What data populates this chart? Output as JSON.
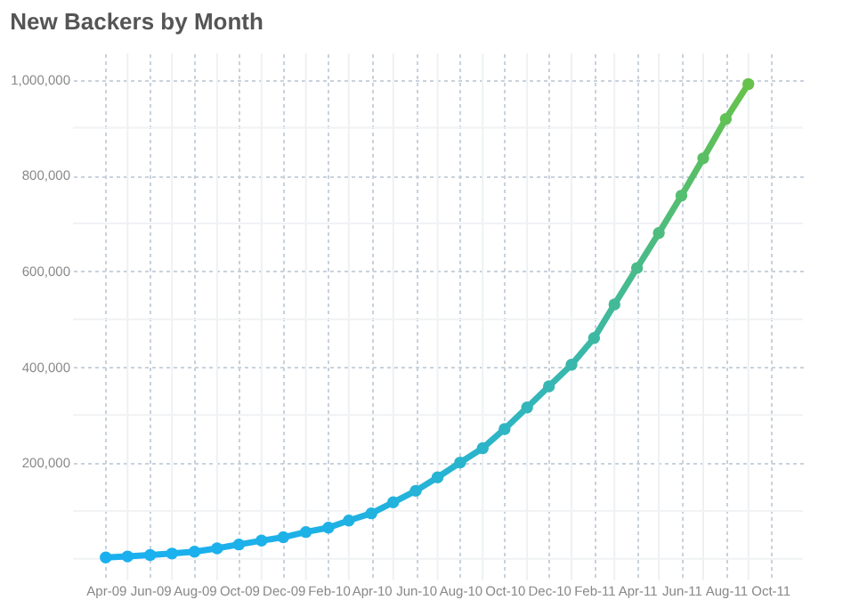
{
  "chart_data": {
    "type": "line",
    "title": "New Backers by Month",
    "x": [
      "2009-04",
      "2009-05",
      "2009-06",
      "2009-07",
      "2009-08",
      "2009-09",
      "2009-10",
      "2009-11",
      "2009-12",
      "2010-01",
      "2010-02",
      "2010-03",
      "2010-04",
      "2010-05",
      "2010-06",
      "2010-07",
      "2010-08",
      "2010-09",
      "2010-10",
      "2010-11",
      "2010-12",
      "2011-01",
      "2011-02",
      "2011-03",
      "2011-04",
      "2011-05",
      "2011-06",
      "2011-07",
      "2011-08",
      "2011-09"
    ],
    "series": [
      {
        "values": [
          3000,
          5000,
          8000,
          11000,
          15000,
          22000,
          30000,
          38000,
          45000,
          56000,
          65000,
          80000,
          95000,
          118000,
          142000,
          170000,
          201000,
          231000,
          271000,
          316000,
          360000,
          405000,
          461000,
          531000,
          607000,
          680000,
          758000,
          836000,
          918000,
          991000
        ],
        "colors": [
          "#1ab0f0",
          "#1ab0ef",
          "#1bb0ee",
          "#1bb0ee",
          "#1bb0ed",
          "#1cb0ec",
          "#1cb1eb",
          "#1db1e9",
          "#1eb1e8",
          "#1eb1e6",
          "#1fb1e5",
          "#20b1e3",
          "#21b2e0",
          "#23b2dc",
          "#25b3d8",
          "#27b3d3",
          "#29b4ce",
          "#2cb4c9",
          "#2fb5c3",
          "#32b6bb",
          "#36b7b4",
          "#39b7ac",
          "#3db8a3",
          "#43ba97",
          "#49bb8a",
          "#4ebc7e",
          "#54be71",
          "#5abf64",
          "#60c156",
          "#66c24a"
        ]
      }
    ],
    "marker": "circle",
    "line_style": "solid",
    "grid": true,
    "xlim": [
      "2009-02-15",
      "2011-11-15"
    ],
    "xticks": [
      {
        "value": "2009-04",
        "label": "Apr-09"
      },
      {
        "value": "2009-05",
        "label": null
      },
      {
        "value": "2009-06",
        "label": "Jun-09"
      },
      {
        "value": "2009-07",
        "label": null
      },
      {
        "value": "2009-08",
        "label": "Aug-09"
      },
      {
        "value": "2009-09",
        "label": null
      },
      {
        "value": "2009-10",
        "label": "Oct-09"
      },
      {
        "value": "2009-11",
        "label": null
      },
      {
        "value": "2009-12",
        "label": "Dec-09"
      },
      {
        "value": "2010-01",
        "label": null
      },
      {
        "value": "2010-02",
        "label": "Feb-10"
      },
      {
        "value": "2010-03",
        "label": null
      },
      {
        "value": "2010-04",
        "label": "Apr-10"
      },
      {
        "value": "2010-05",
        "label": null
      },
      {
        "value": "2010-06",
        "label": "Jun-10"
      },
      {
        "value": "2010-07",
        "label": null
      },
      {
        "value": "2010-08",
        "label": "Aug-10"
      },
      {
        "value": "2010-09",
        "label": null
      },
      {
        "value": "2010-10",
        "label": "Oct-10"
      },
      {
        "value": "2010-11",
        "label": null
      },
      {
        "value": "2010-12",
        "label": "Dec-10"
      },
      {
        "value": "2011-01",
        "label": null
      },
      {
        "value": "2011-02",
        "label": "Feb-11"
      },
      {
        "value": "2011-03",
        "label": null
      },
      {
        "value": "2011-04",
        "label": "Apr-11"
      },
      {
        "value": "2011-05",
        "label": null
      },
      {
        "value": "2011-06",
        "label": "Jun-11"
      },
      {
        "value": "2011-07",
        "label": null
      },
      {
        "value": "2011-08",
        "label": "Aug-11"
      },
      {
        "value": "2011-09",
        "label": null
      },
      {
        "value": "2011-10",
        "label": "Oct-11"
      }
    ],
    "ylim": [
      -45000,
      1055000
    ],
    "yticks": [
      {
        "value": 0,
        "label": null
      },
      {
        "value": 100000,
        "label": null
      },
      {
        "value": 200000,
        "label": "200,000"
      },
      {
        "value": 300000,
        "label": null
      },
      {
        "value": 400000,
        "label": "400,000"
      },
      {
        "value": 500000,
        "label": null
      },
      {
        "value": 600000,
        "label": "600,000"
      },
      {
        "value": 700000,
        "label": null
      },
      {
        "value": 800000,
        "label": "800,000"
      },
      {
        "value": 900000,
        "label": null
      },
      {
        "value": 1000000,
        "label": "1,000,000"
      }
    ]
  }
}
